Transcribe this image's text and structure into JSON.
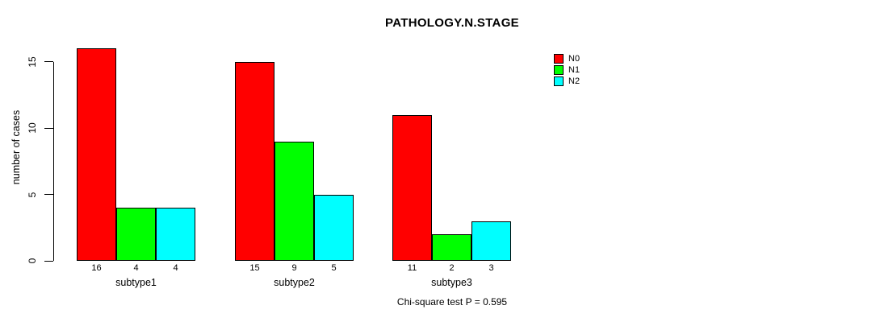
{
  "footer": {
    "stat_text": "Chi-square test P = 0.595"
  },
  "chart_data": {
    "type": "bar",
    "title": "PATHOLOGY.N.STAGE",
    "xlabel": "",
    "ylabel": "number of cases",
    "categories": [
      "subtype1",
      "subtype2",
      "subtype3"
    ],
    "series": [
      {
        "name": "N0",
        "color": "#ff0000",
        "values": [
          16,
          15,
          11
        ]
      },
      {
        "name": "N1",
        "color": "#00ff00",
        "values": [
          4,
          9,
          2
        ]
      },
      {
        "name": "N2",
        "color": "#00ffff",
        "values": [
          4,
          5,
          3
        ]
      }
    ],
    "yticks": [
      0,
      5,
      10,
      15
    ],
    "ylim": [
      0,
      16.5
    ],
    "grid": false,
    "bar_value_labels": true,
    "legend_position": "top-right",
    "bar_border_color": "#000000",
    "axis_color": "#000000",
    "annotation": "Chi-square test P = 0.595"
  }
}
